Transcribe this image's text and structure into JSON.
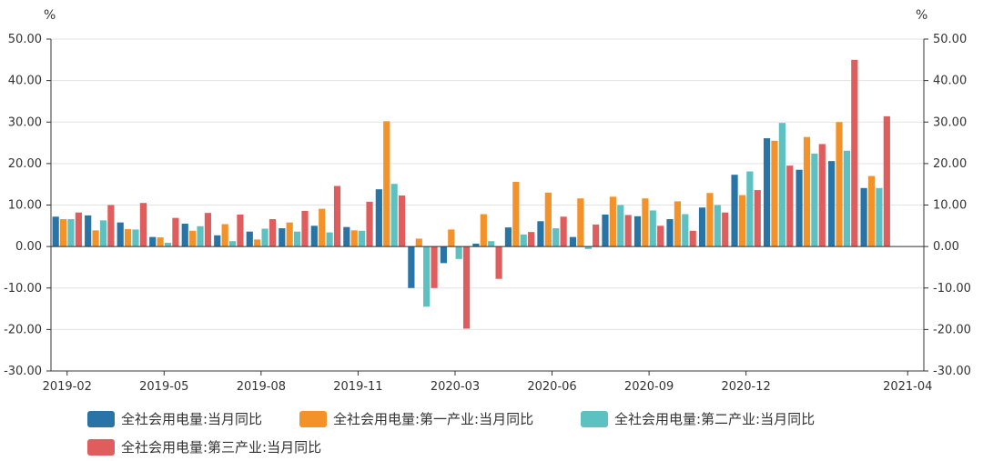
{
  "chart_data": {
    "type": "bar",
    "y_unit_left": "%",
    "y_unit_right": "%",
    "ylim": [
      -30,
      50
    ],
    "y_ticks": [
      "-30.00",
      "-20.00",
      "-10.00",
      "0.00",
      "10.00",
      "20.00",
      "30.00",
      "40.00",
      "50.00"
    ],
    "grid": true,
    "legend_position": "bottom-left",
    "categories": [
      "2019-02",
      "2019-03",
      "2019-04",
      "2019-05",
      "2019-06",
      "2019-07",
      "2019-08",
      "2019-09",
      "2019-10",
      "2019-11",
      "2019-12",
      "2020-01",
      "2020-02",
      "2020-03",
      "2020-04",
      "2020-05",
      "2020-06",
      "2020-07",
      "2020-08",
      "2020-09",
      "2020-10",
      "2020-11",
      "2020-12",
      "2021-01",
      "2021-02",
      "2021-03",
      "2021-04"
    ],
    "x_tick_labels": [
      "2019-02",
      "2019-05",
      "2019-08",
      "2019-11",
      "2020-03",
      "2020-06",
      "2020-09",
      "2020-12",
      "2021-04"
    ],
    "x_tick_positions": [
      0,
      3,
      6,
      9,
      12,
      15,
      18,
      21,
      26
    ],
    "series": [
      {
        "name": "全社会用电量:当月同比",
        "color": "#2874a6",
        "values": [
          7.2,
          7.5,
          5.8,
          2.3,
          5.5,
          2.7,
          3.6,
          4.4,
          5.0,
          4.7,
          13.8,
          -10.0,
          -4.0,
          0.7,
          4.6,
          6.1,
          2.3,
          7.7,
          7.3,
          6.6,
          9.4,
          17.3,
          26.1,
          18.5,
          20.6,
          14.1,
          null
        ]
      },
      {
        "name": "全社会用电量:第一产业:当月同比",
        "color": "#f39229",
        "values": [
          6.6,
          3.9,
          4.2,
          2.2,
          3.8,
          5.4,
          1.7,
          5.8,
          9.1,
          3.9,
          30.2,
          1.9,
          4.1,
          7.8,
          15.6,
          13.0,
          11.6,
          12.0,
          11.6,
          10.9,
          12.9,
          12.4,
          25.5,
          26.4,
          30.0,
          17.0,
          null
        ]
      },
      {
        "name": "全社会用电量:第二产业:当月同比",
        "color": "#5dc1c1",
        "values": [
          6.6,
          6.3,
          4.1,
          0.9,
          4.9,
          1.3,
          4.3,
          3.6,
          3.4,
          3.8,
          15.1,
          -14.5,
          -3.0,
          1.3,
          2.9,
          4.4,
          -0.6,
          10.0,
          8.7,
          7.8,
          10.0,
          18.1,
          29.8,
          22.4,
          23.1,
          14.1,
          null
        ]
      },
      {
        "name": "全社会用电量:第三产业:当月同比",
        "color": "#e05d5d",
        "values": [
          8.2,
          10.0,
          10.5,
          6.9,
          8.1,
          7.7,
          6.6,
          8.6,
          14.6,
          10.8,
          12.3,
          -10.0,
          -19.8,
          -7.8,
          3.5,
          7.2,
          5.3,
          7.6,
          5.0,
          3.8,
          8.2,
          13.6,
          19.5,
          24.7,
          45.0,
          31.4,
          null
        ]
      }
    ]
  },
  "colors": {
    "axis": "#333333",
    "grid": "#e3e3e3"
  }
}
